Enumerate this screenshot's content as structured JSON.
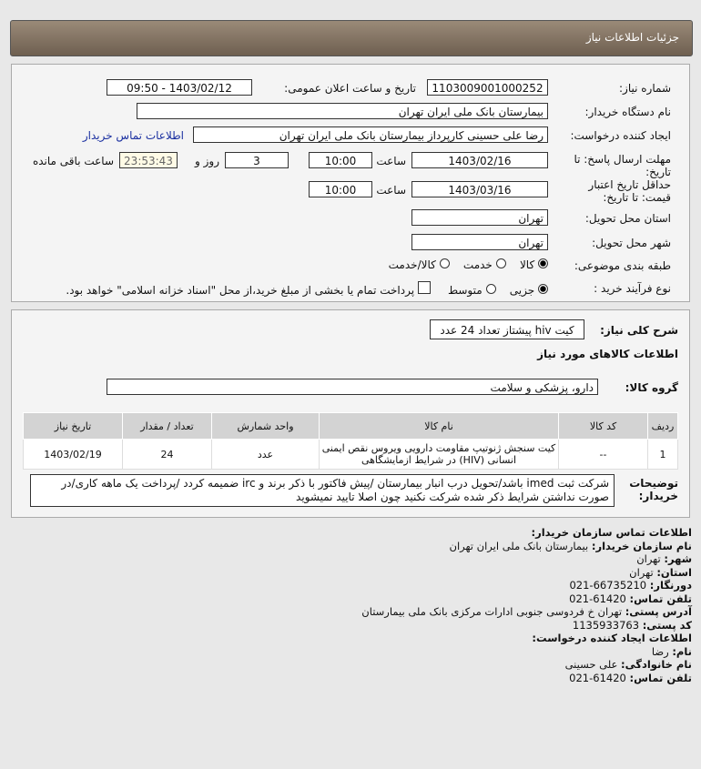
{
  "header": {
    "title": "جزئیات اطلاعات نیاز"
  },
  "form": {
    "need_number_label": "شماره نیاز:",
    "need_number": "1103009001000252",
    "announce_label": "تاریخ و ساعت اعلان عمومی:",
    "announce_value": "1403/02/12 - 09:50",
    "buyer_label": "نام دستگاه خریدار:",
    "buyer": "بیمارستان بانک ملی ایران تهران",
    "creator_label": "ایجاد کننده درخواست:",
    "creator": "رضا علی حسینی کارپرداز بیمارستان بانک ملی ایران تهران",
    "contact_link": "اطلاعات تماس خریدار",
    "deadline_label": "مهلت ارسال پاسخ: تا تاریخ:",
    "deadline_date": "1403/02/16",
    "time_label": "ساعت",
    "deadline_time": "10:00",
    "days": "3",
    "days_label": "روز و",
    "remaining": "23:53:43",
    "remaining_label": "ساعت باقی مانده",
    "validity_label": "حداقل تاریخ اعتبار قیمت: تا تاریخ:",
    "validity_date": "1403/03/16",
    "validity_time": "10:00",
    "province_label": "استان محل تحویل:",
    "province": "تهران",
    "city_label": "شهر محل تحویل:",
    "city": "تهران",
    "category_label": "طبقه بندی موضوعی:",
    "category_options": [
      "کالا",
      "خدمت",
      "کالا/خدمت"
    ],
    "category_selected": "کالا",
    "process_label": "نوع فرآیند خرید :",
    "process_options": [
      "جزیی",
      "متوسط"
    ],
    "process_selected": "جزیی",
    "payment_note": "پرداخت تمام یا بخشی از مبلغ خرید،از محل \"اسناد خزانه اسلامی\" خواهد بود."
  },
  "need": {
    "desc_label": "شرح کلی نیاز:",
    "desc": "کیت hiv پیشتاز تعداد 24 عدد",
    "goods_title": "اطلاعات کالاهای مورد نیاز",
    "group_label": "گروه کالا:",
    "group": "دارو، پزشکی و سلامت",
    "columns": [
      "ردیف",
      "کد کالا",
      "نام کالا",
      "واحد شمارش",
      "تعداد / مقدار",
      "تاریخ نیاز"
    ],
    "rows": [
      [
        "1",
        "--",
        "کیت سنجش ژنوتیپ مقاومت دارویی ویروس نقص ایمنی انسانی (HIV) در شرایط ازمایشگاهی",
        "عدد",
        "24",
        "1403/02/19"
      ]
    ],
    "notes_label": "توضیحات خریدار:",
    "notes": "شرکت ثبت imed باشد/تحویل درب انبار بیمارستان /پیش فاکتور با ذکر برند و irc ضمیمه کردد /پرداخت یک ماهه کاری/در صورت نداشتن شرایط ذکر شده شرکت نکنید چون اصلا تایید نمیشوید"
  },
  "contact": {
    "title": "اطلاعات تماس سازمان خریدار:",
    "items": [
      [
        "نام سازمان خریدار:",
        "بیمارستان بانک ملی ایران تهران"
      ],
      [
        "شهر:",
        "تهران"
      ],
      [
        "استان:",
        "تهران"
      ],
      [
        "دورنگار:",
        "66735210-021"
      ],
      [
        "تلفن تماس:",
        "61420-021"
      ],
      [
        "آدرس پستی:",
        "تهران خ فردوسی جنوبی ادارات مرکزی بانک ملی بیمارستان"
      ],
      [
        "کد پستی:",
        "1135933763"
      ]
    ],
    "creator_title": "اطلاعات ایجاد کننده درخواست:",
    "creator_items": [
      [
        "نام:",
        "رضا"
      ],
      [
        "نام خانوادگی:",
        "علی حسینی"
      ],
      [
        "تلفن تماس:",
        "61420-021"
      ]
    ]
  }
}
